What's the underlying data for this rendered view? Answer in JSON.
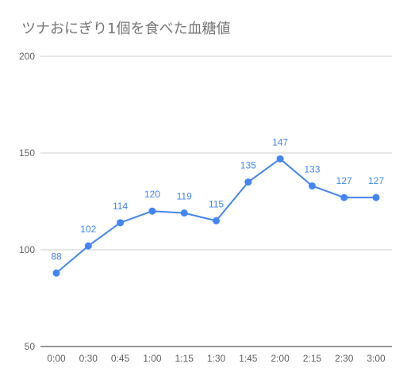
{
  "chart_data": {
    "type": "line",
    "title": "ツナおにぎり1個を食べた血糖値",
    "xlabel": "",
    "ylabel": "",
    "categories": [
      "0:00",
      "0:30",
      "0:45",
      "1:00",
      "1:15",
      "1:30",
      "1:45",
      "2:00",
      "2:15",
      "2:30",
      "3:00"
    ],
    "series": [
      {
        "values": [
          88,
          102,
          114,
          120,
          119,
          115,
          135,
          147,
          133,
          127,
          127
        ],
        "color": "#4285f4"
      }
    ],
    "yticks": [
      50,
      100,
      150,
      200
    ],
    "ylim": [
      50,
      200
    ],
    "grid": true,
    "legend": "none",
    "data_labels": true
  },
  "colors": {
    "line": "#4285f4",
    "grid": "#cccccc",
    "title": "#757575",
    "axis_text": "#616161"
  }
}
